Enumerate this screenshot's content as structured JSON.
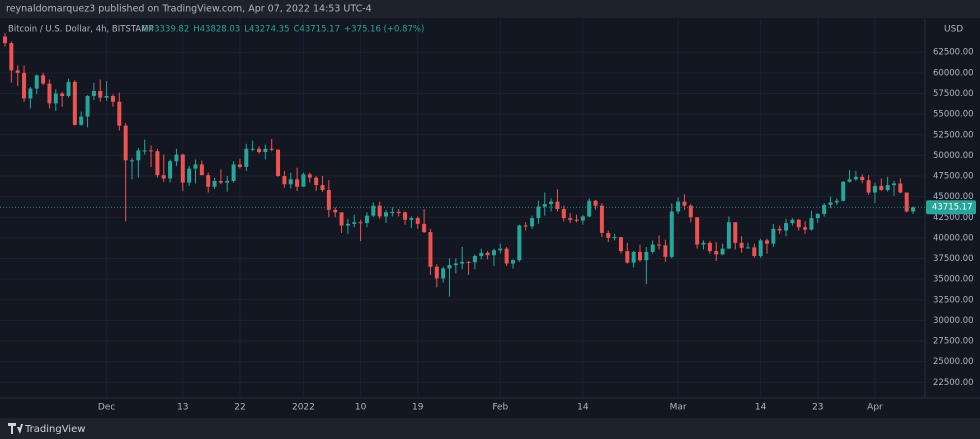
{
  "header": {
    "text": "reynaldomarquez3 published on TradingView.com, Apr 07, 2022 14:53 UTC-4"
  },
  "footer": {
    "brand": "TradingView"
  },
  "chart_data": {
    "type": "candlestick",
    "symbol": "Bitcoin / U.S. Dollar, 4h, BITSTAMP",
    "ohlc_legend": [
      "O43339.82",
      "H43828.03",
      "L43274.35",
      "C43715.17",
      "+375.16 (+0.87%)"
    ],
    "currency": "USD",
    "last_price": 43715.17,
    "up_color": "#26a69a",
    "down_color": "#ef5350",
    "grid": true,
    "ylim": [
      20600,
      65800
    ],
    "yticks": [
      {
        "value": 22500,
        "label": "22500.00"
      },
      {
        "value": 25000,
        "label": "25000.00"
      },
      {
        "value": 27500,
        "label": "27500.00"
      },
      {
        "value": 30000,
        "label": "30000.00"
      },
      {
        "value": 32500,
        "label": "32500.00"
      },
      {
        "value": 35000,
        "label": "35000.00"
      },
      {
        "value": 37500,
        "label": "37500.00"
      },
      {
        "value": 40000,
        "label": "40000.00"
      },
      {
        "value": 42500,
        "label": "42500.00"
      },
      {
        "value": 45000,
        "label": "45000.00"
      },
      {
        "value": 47500,
        "label": "47500.00"
      },
      {
        "value": 50000,
        "label": "50000.00"
      },
      {
        "value": 52500,
        "label": "52500.00"
      },
      {
        "value": 55000,
        "label": "55000.00"
      },
      {
        "value": 57500,
        "label": "57500.00"
      },
      {
        "value": 60000,
        "label": "60000.00"
      },
      {
        "value": 62500,
        "label": "62500.00"
      }
    ],
    "categories": [
      null,
      null,
      null,
      null,
      null,
      null,
      null,
      null,
      null,
      null,
      null,
      null,
      null,
      null,
      null,
      null,
      "Dec",
      null,
      null,
      null,
      null,
      null,
      null,
      null,
      null,
      null,
      null,
      null,
      "13",
      null,
      null,
      null,
      null,
      null,
      null,
      null,
      null,
      "22",
      null,
      null,
      null,
      null,
      null,
      null,
      null,
      null,
      null,
      "2022",
      null,
      null,
      null,
      null,
      null,
      null,
      null,
      null,
      "10",
      null,
      null,
      null,
      null,
      null,
      null,
      null,
      null,
      "19",
      null,
      null,
      null,
      null,
      null,
      null,
      null,
      null,
      null,
      null,
      null,
      null,
      "Feb",
      null,
      null,
      null,
      null,
      null,
      null,
      null,
      null,
      null,
      null,
      null,
      null,
      "14",
      null,
      null,
      null,
      null,
      null,
      null,
      null,
      null,
      null,
      null,
      null,
      null,
      null,
      null,
      "Mar",
      null,
      null,
      null,
      null,
      null,
      null,
      null,
      null,
      null,
      null,
      null,
      null,
      "14",
      null,
      null,
      null,
      null,
      null,
      null,
      null,
      null,
      "23",
      null,
      null,
      null,
      null,
      null,
      null,
      null,
      null,
      "Apr",
      null,
      null,
      null,
      null,
      null,
      null
    ],
    "ohlc": [
      [
        64400,
        64800,
        63200,
        63600
      ],
      [
        63600,
        63800,
        58800,
        60300
      ],
      [
        60300,
        60900,
        58400,
        60000
      ],
      [
        60000,
        60900,
        56500,
        56900
      ],
      [
        56900,
        58300,
        55700,
        58100
      ],
      [
        58100,
        59800,
        57400,
        59700
      ],
      [
        59700,
        60000,
        58500,
        58700
      ],
      [
        58700,
        59200,
        55700,
        56300
      ],
      [
        56300,
        58000,
        55400,
        57500
      ],
      [
        57500,
        57700,
        55900,
        57200
      ],
      [
        57200,
        59300,
        57000,
        58900
      ],
      [
        58900,
        59100,
        53600,
        53700
      ],
      [
        53700,
        55300,
        53600,
        54700
      ],
      [
        54700,
        57300,
        53400,
        57200
      ],
      [
        57200,
        58800,
        56700,
        57800
      ],
      [
        57800,
        59200,
        56500,
        57000
      ],
      [
        57000,
        59000,
        56600,
        57200
      ],
      [
        57200,
        57400,
        55900,
        56500
      ],
      [
        56500,
        57600,
        53000,
        53600
      ],
      [
        53600,
        53900,
        42000,
        49400
      ],
      [
        49400,
        49700,
        47100,
        49400
      ],
      [
        49400,
        50900,
        47300,
        50600
      ],
      [
        50600,
        51900,
        50100,
        50600
      ],
      [
        50600,
        51200,
        48600,
        50500
      ],
      [
        50500,
        50800,
        47300,
        47600
      ],
      [
        47600,
        50100,
        46800,
        47200
      ],
      [
        47200,
        49500,
        46700,
        49300
      ],
      [
        49300,
        50800,
        48700,
        50100
      ],
      [
        50100,
        50200,
        45700,
        46700
      ],
      [
        46700,
        48700,
        46300,
        48400
      ],
      [
        48400,
        49500,
        46600,
        48900
      ],
      [
        48900,
        49400,
        47600,
        47600
      ],
      [
        47600,
        47900,
        45500,
        46200
      ],
      [
        46200,
        47300,
        45900,
        46900
      ],
      [
        46900,
        48300,
        46500,
        46700
      ],
      [
        46700,
        47500,
        45600,
        46900
      ],
      [
        46900,
        49300,
        46700,
        48900
      ],
      [
        48900,
        49600,
        48400,
        48600
      ],
      [
        48600,
        51400,
        48100,
        50800
      ],
      [
        50800,
        51800,
        50500,
        50800
      ],
      [
        50800,
        51100,
        50200,
        50400
      ],
      [
        50400,
        51300,
        49500,
        50800
      ],
      [
        50800,
        52000,
        50500,
        50700
      ],
      [
        50700,
        50700,
        47400,
        47500
      ],
      [
        47500,
        48100,
        46100,
        46500
      ],
      [
        46500,
        47900,
        46000,
        47100
      ],
      [
        47100,
        48500,
        45700,
        46200
      ],
      [
        46200,
        47900,
        46200,
        47700
      ],
      [
        47700,
        47900,
        46700,
        47300
      ],
      [
        47300,
        47500,
        45700,
        46400
      ],
      [
        46400,
        47500,
        45600,
        45800
      ],
      [
        45800,
        47000,
        42500,
        43400
      ],
      [
        43400,
        43700,
        42500,
        43100
      ],
      [
        43100,
        43100,
        40600,
        41500
      ],
      [
        41500,
        42300,
        40500,
        41700
      ],
      [
        41700,
        42800,
        41300,
        41900
      ],
      [
        41900,
        42200,
        39600,
        41800
      ],
      [
        41800,
        43100,
        41300,
        42700
      ],
      [
        42700,
        44300,
        42500,
        43900
      ],
      [
        43900,
        44400,
        42300,
        42600
      ],
      [
        42600,
        43400,
        41800,
        43100
      ],
      [
        43100,
        43700,
        42600,
        43150
      ],
      [
        43150,
        43500,
        42600,
        43100
      ],
      [
        43100,
        43200,
        41600,
        42200
      ],
      [
        42200,
        42600,
        41200,
        42400
      ],
      [
        42400,
        42600,
        41100,
        41700
      ],
      [
        41700,
        43500,
        40600,
        40700
      ],
      [
        40700,
        41100,
        35500,
        36500
      ],
      [
        36500,
        36800,
        34000,
        35100
      ],
      [
        35100,
        36500,
        34600,
        36300
      ],
      [
        36300,
        37500,
        32900,
        36700
      ],
      [
        36700,
        37500,
        35700,
        36900
      ],
      [
        36900,
        38900,
        36200,
        37100
      ],
      [
        37100,
        37200,
        35500,
        37050
      ],
      [
        37050,
        38000,
        36200,
        37800
      ],
      [
        37800,
        38700,
        37400,
        38200
      ],
      [
        38200,
        38400,
        37400,
        37900
      ],
      [
        37900,
        38700,
        36600,
        38500
      ],
      [
        38500,
        39300,
        38100,
        38700
      ],
      [
        38700,
        38900,
        36600,
        36900
      ],
      [
        36900,
        37400,
        36300,
        37300
      ],
      [
        37300,
        41600,
        37100,
        41500
      ],
      [
        41500,
        41900,
        40900,
        41400
      ],
      [
        41400,
        42700,
        41100,
        42400
      ],
      [
        42400,
        44500,
        41700,
        43800
      ],
      [
        43800,
        45500,
        42700,
        44100
      ],
      [
        44100,
        44800,
        43200,
        44400
      ],
      [
        44400,
        45900,
        43200,
        43500
      ],
      [
        43500,
        43900,
        42000,
        42400
      ],
      [
        42400,
        43000,
        41800,
        42200
      ],
      [
        42200,
        42800,
        41900,
        42100
      ],
      [
        42100,
        42800,
        41600,
        42600
      ],
      [
        42600,
        44800,
        42500,
        44500
      ],
      [
        44500,
        44600,
        43400,
        43900
      ],
      [
        43900,
        44200,
        40100,
        40600
      ],
      [
        40600,
        40900,
        39500,
        40000
      ],
      [
        40000,
        40500,
        39700,
        40100
      ],
      [
        40100,
        40100,
        38100,
        38400
      ],
      [
        38400,
        39400,
        36900,
        37000
      ],
      [
        37000,
        38400,
        36400,
        38300
      ],
      [
        38300,
        39200,
        37100,
        37300
      ],
      [
        37300,
        38900,
        34400,
        38300
      ],
      [
        38300,
        39700,
        38100,
        39200
      ],
      [
        39200,
        40300,
        38600,
        39100
      ],
      [
        39100,
        39800,
        37100,
        37700
      ],
      [
        37700,
        44200,
        37500,
        43200
      ],
      [
        43200,
        44900,
        42900,
        44400
      ],
      [
        44400,
        45300,
        43400,
        43900
      ],
      [
        43900,
        44100,
        41900,
        42500
      ],
      [
        42500,
        42500,
        38700,
        39200
      ],
      [
        39200,
        39700,
        38600,
        39400
      ],
      [
        39400,
        39600,
        38100,
        38400
      ],
      [
        38400,
        39500,
        37200,
        38000
      ],
      [
        38000,
        39300,
        37900,
        38700
      ],
      [
        38700,
        42600,
        38700,
        41900
      ],
      [
        41900,
        41900,
        38600,
        39400
      ],
      [
        39400,
        40200,
        38200,
        38800
      ],
      [
        38800,
        39400,
        38700,
        38850
      ],
      [
        38850,
        39300,
        37600,
        37800
      ],
      [
        37800,
        39900,
        37600,
        39700
      ],
      [
        39700,
        39900,
        38100,
        39300
      ],
      [
        39300,
        41700,
        38900,
        41100
      ],
      [
        41100,
        41500,
        40500,
        40900
      ],
      [
        40900,
        42300,
        40200,
        41800
      ],
      [
        41800,
        42400,
        41500,
        42200
      ],
      [
        42200,
        42300,
        40900,
        41300
      ],
      [
        41300,
        42000,
        40500,
        41000
      ],
      [
        41000,
        43300,
        40900,
        42400
      ],
      [
        42400,
        43000,
        41800,
        42900
      ],
      [
        42900,
        44200,
        42600,
        44000
      ],
      [
        44000,
        45000,
        43600,
        44300
      ],
      [
        44300,
        44800,
        44000,
        44500
      ],
      [
        44500,
        46900,
        44400,
        46800
      ],
      [
        46800,
        48200,
        46700,
        47100
      ],
      [
        47100,
        48100,
        46900,
        47400
      ],
      [
        47400,
        47700,
        46600,
        47000
      ],
      [
        47000,
        47600,
        45200,
        45500
      ],
      [
        45500,
        46700,
        44200,
        46300
      ],
      [
        46300,
        47200,
        45700,
        45800
      ],
      [
        45800,
        47400,
        45600,
        46400
      ],
      [
        46400,
        46900,
        45100,
        46600
      ],
      [
        46600,
        47200,
        45400,
        45500
      ],
      [
        45500,
        45500,
        43100,
        43200
      ],
      [
        43200,
        43800,
        42900,
        43700
      ]
    ]
  }
}
